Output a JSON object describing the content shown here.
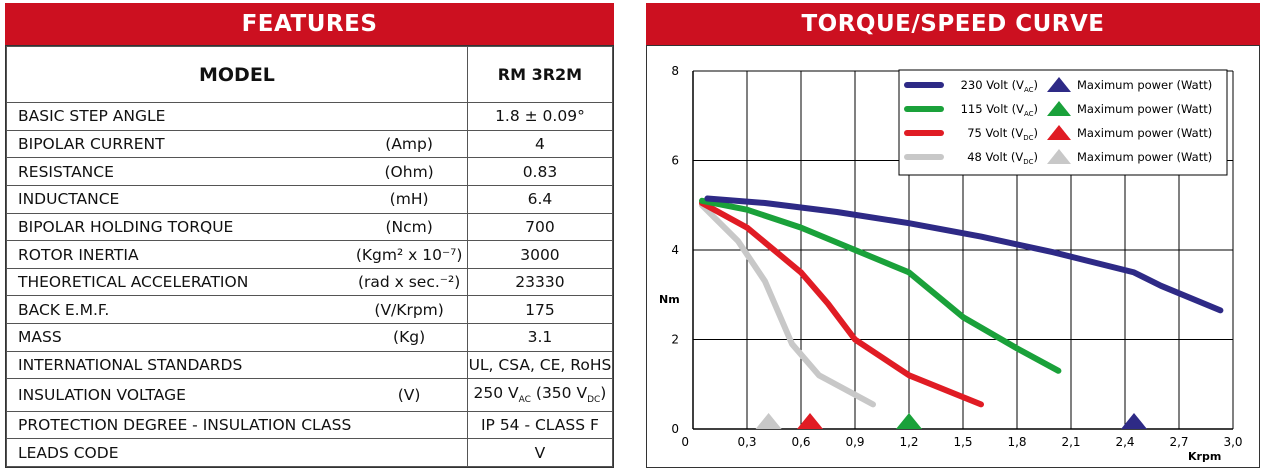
{
  "features": {
    "title": "FEATURES",
    "header": {
      "label": "MODEL",
      "value": "RM 3R2M"
    },
    "rows": [
      {
        "label": "BASIC STEP ANGLE",
        "unit": "",
        "value": "1.8 ± 0.09°"
      },
      {
        "label": "BIPOLAR CURRENT",
        "unit": "(Amp)",
        "value": "4"
      },
      {
        "label": "RESISTANCE",
        "unit": "(Ohm)",
        "value": "0.83"
      },
      {
        "label": "INDUCTANCE",
        "unit": "(mH)",
        "value": "6.4"
      },
      {
        "label": "BIPOLAR HOLDING TORQUE",
        "unit": "(Ncm)",
        "value": "700"
      },
      {
        "label": "ROTOR INERTIA",
        "unit": "(Kgm² x 10⁻⁷)",
        "value": "3000"
      },
      {
        "label": "THEORETICAL ACCELERATION",
        "unit": "(rad x sec.⁻²)",
        "value": "23330"
      },
      {
        "label": "BACK E.M.F.",
        "unit": "(V/Krpm)",
        "value": "175"
      },
      {
        "label": "MASS",
        "unit": "(Kg)",
        "value": "3.1"
      },
      {
        "label": "INTERNATIONAL STANDARDS",
        "unit": "",
        "value": "UL, CSA, CE, RoHS"
      },
      {
        "label": "INSULATION VOLTAGE",
        "unit": "(V)",
        "value": "250 VAC (350 VDC)"
      },
      {
        "label": "PROTECTION DEGREE - INSULATION CLASS",
        "unit": "",
        "value": "IP 54 - CLASS F"
      },
      {
        "label": "LEADS CODE",
        "unit": "",
        "value": "V"
      }
    ]
  },
  "chart_data": {
    "type": "line",
    "title": "TORQUE/SPEED CURVE",
    "xlabel": "Krpm",
    "ylabel": "Nm",
    "xlim": [
      0,
      3.0
    ],
    "ylim": [
      0,
      8
    ],
    "xticks": [
      "0",
      "0,3",
      "0,6",
      "0,9",
      "1,2",
      "1,5",
      "1,8",
      "2,1",
      "2,4",
      "2,7",
      "3,0"
    ],
    "yticks": [
      "0",
      "2",
      "4",
      "6",
      "8"
    ],
    "grid": true,
    "legend_position": "top-right",
    "max_power_label": "Maximum power (Watt)",
    "series": [
      {
        "name": "230 Volt (VAC)",
        "volt": "230 Volt (V",
        "sub": "AC",
        "color": "#2e2a86",
        "x": [
          0.08,
          0.4,
          0.8,
          1.2,
          1.6,
          2.0,
          2.45,
          2.6,
          2.93
        ],
        "y": [
          5.15,
          5.05,
          4.85,
          4.6,
          4.3,
          3.95,
          3.5,
          3.2,
          2.65
        ],
        "max_power_x": 2.45
      },
      {
        "name": "115 Volt (VAC)",
        "volt": "115 Volt (V",
        "sub": "AC",
        "color": "#1aa13a",
        "x": [
          0.05,
          0.3,
          0.6,
          0.9,
          1.2,
          1.5,
          1.8,
          2.03
        ],
        "y": [
          5.1,
          4.9,
          4.5,
          4.0,
          3.5,
          2.5,
          1.8,
          1.3
        ],
        "max_power_x": 1.2
      },
      {
        "name": "75 Volt (VDC)",
        "volt": "75 Volt (V",
        "sub": "DC",
        "color": "#e01c24",
        "x": [
          0.05,
          0.3,
          0.6,
          0.75,
          0.9,
          1.2,
          1.6
        ],
        "y": [
          5.05,
          4.5,
          3.5,
          2.8,
          2.0,
          1.2,
          0.55
        ],
        "max_power_x": 0.65
      },
      {
        "name": "48 Volt (VDC)",
        "volt": "48 Volt (V",
        "sub": "DC",
        "color": "#c8c8c8",
        "x": [
          0.05,
          0.25,
          0.4,
          0.55,
          0.7,
          1.0
        ],
        "y": [
          5.0,
          4.2,
          3.3,
          1.9,
          1.2,
          0.55
        ],
        "max_power_x": 0.42
      }
    ]
  }
}
